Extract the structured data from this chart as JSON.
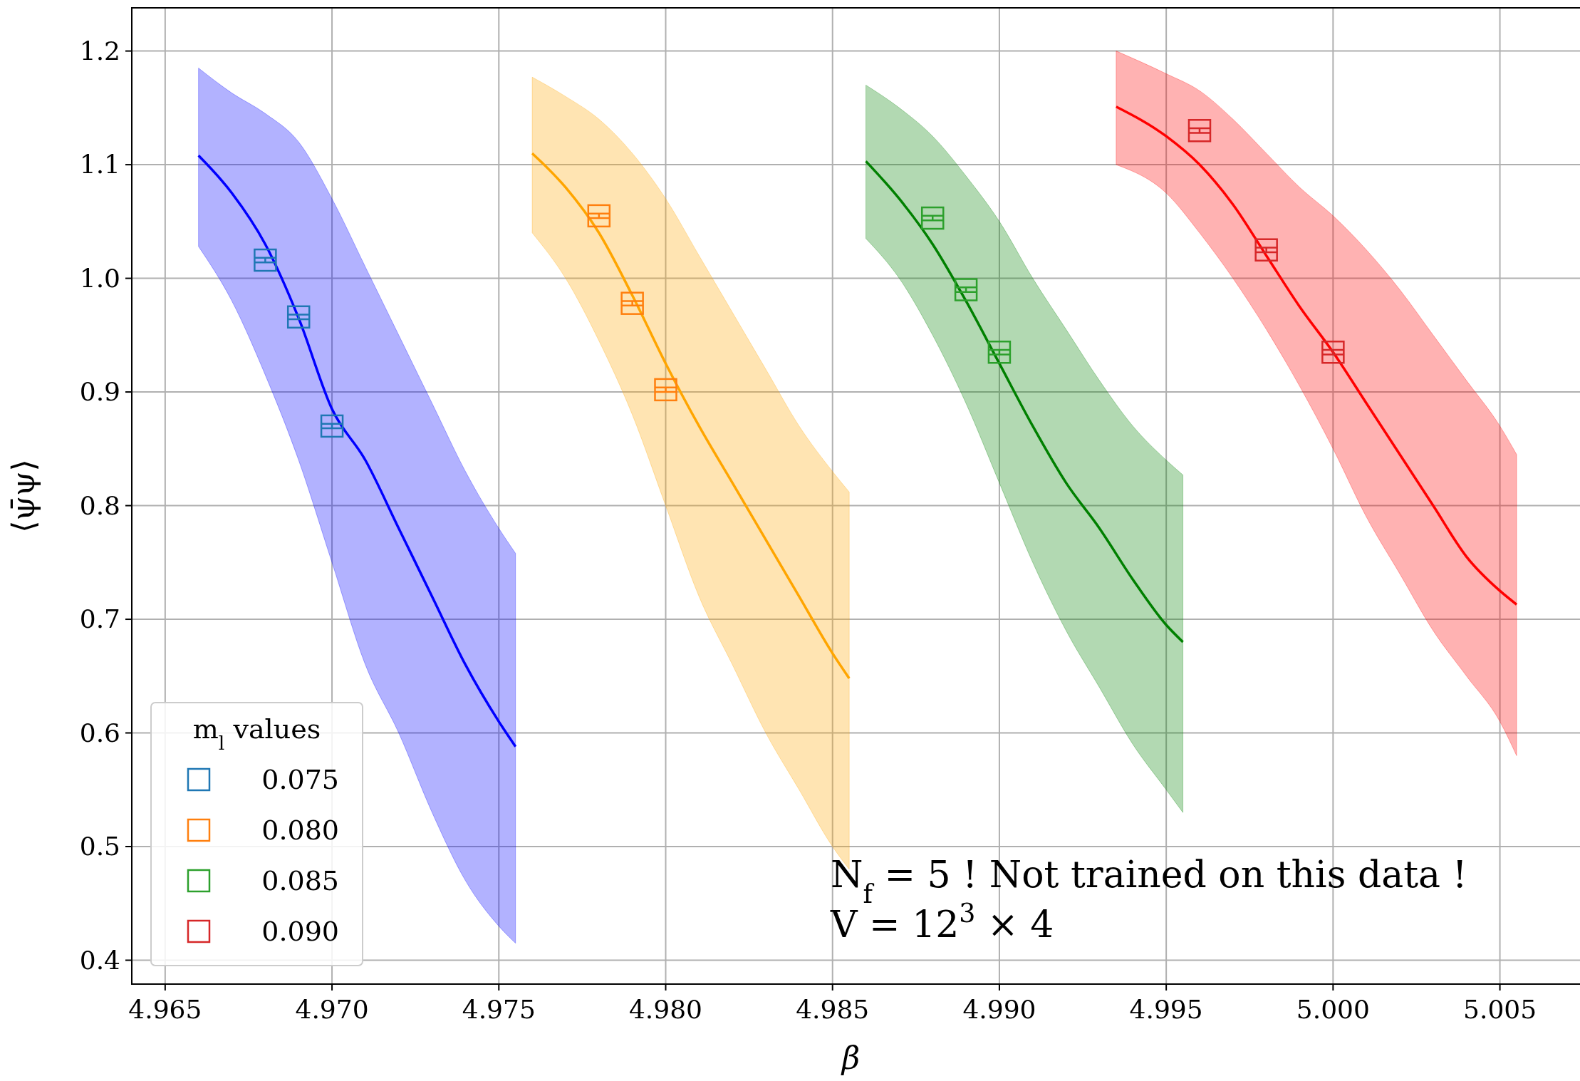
{
  "chart_data": {
    "type": "scatter",
    "xlabel": "β",
    "ylabel": "⟨ψ̄ψ⟩",
    "legend_title": "m$_{l}$ values",
    "legend": "bottom left",
    "grid": true,
    "marker": "square",
    "xlim": [
      4.964,
      5.0074
    ],
    "ylim": [
      0.379,
      1.238
    ],
    "xticks": [
      {
        "value": 4.965,
        "label": "4.965"
      },
      {
        "value": 4.97,
        "label": "4.970"
      },
      {
        "value": 4.975,
        "label": "4.975"
      },
      {
        "value": 4.98,
        "label": "4.980"
      },
      {
        "value": 4.985,
        "label": "4.985"
      },
      {
        "value": 4.99,
        "label": "4.990"
      },
      {
        "value": 4.995,
        "label": "4.995"
      },
      {
        "value": 5.0,
        "label": "5.000"
      },
      {
        "value": 5.005,
        "label": "5.005"
      }
    ],
    "yticks": [
      0.4,
      0.5,
      0.6,
      0.7,
      0.8,
      0.9,
      {
        "value": 1.0,
        "label": "1.0"
      },
      1.1,
      1.2
    ],
    "series": [
      {
        "type": "line",
        "marker": "none",
        "color": "#0000ff",
        "x": [
          4.966,
          4.967,
          4.968,
          4.969,
          4.97,
          4.971,
          4.972,
          4.973,
          4.974,
          4.975,
          4.9755
        ],
        "values": [
          1.108,
          1.075,
          1.03,
          0.965,
          0.885,
          0.84,
          0.78,
          0.72,
          0.66,
          0.61,
          0.588
        ],
        "upper": [
          1.185,
          1.163,
          1.145,
          1.12,
          1.07,
          1.01,
          0.95,
          0.89,
          0.83,
          0.78,
          0.758
        ],
        "lower": [
          1.028,
          0.98,
          0.915,
          0.84,
          0.75,
          0.66,
          0.6,
          0.53,
          0.47,
          0.43,
          0.415
        ]
      },
      {
        "type": "line",
        "marker": "none",
        "color": "#ffa500",
        "x": [
          4.976,
          4.977,
          4.978,
          4.979,
          4.98,
          4.981,
          4.982,
          4.983,
          4.984,
          4.985,
          4.9855
        ],
        "values": [
          1.11,
          1.08,
          1.04,
          0.985,
          0.925,
          0.87,
          0.82,
          0.77,
          0.72,
          0.67,
          0.648
        ],
        "upper": [
          1.177,
          1.16,
          1.14,
          1.11,
          1.07,
          1.02,
          0.97,
          0.92,
          0.87,
          0.83,
          0.812
        ],
        "lower": [
          1.04,
          1.0,
          0.945,
          0.88,
          0.8,
          0.72,
          0.66,
          0.6,
          0.55,
          0.5,
          0.48
        ]
      },
      {
        "type": "line",
        "marker": "none",
        "color": "#008000",
        "x": [
          4.986,
          4.987,
          4.988,
          4.989,
          4.99,
          4.991,
          4.992,
          4.993,
          4.994,
          4.995,
          4.9955
        ],
        "values": [
          1.103,
          1.07,
          1.03,
          0.98,
          0.925,
          0.87,
          0.82,
          0.78,
          0.735,
          0.695,
          0.68
        ],
        "upper": [
          1.17,
          1.15,
          1.125,
          1.09,
          1.05,
          1.0,
          0.955,
          0.91,
          0.87,
          0.84,
          0.827
        ],
        "lower": [
          1.035,
          1.0,
          0.95,
          0.89,
          0.82,
          0.75,
          0.69,
          0.64,
          0.59,
          0.55,
          0.53
        ]
      },
      {
        "type": "line",
        "marker": "none",
        "color": "#ff0000",
        "x": [
          4.9935,
          4.995,
          4.996,
          4.997,
          4.998,
          4.999,
          5.0,
          5.001,
          5.002,
          5.003,
          5.004,
          5.005,
          5.0055
        ],
        "values": [
          1.151,
          1.125,
          1.1,
          1.065,
          1.02,
          0.975,
          0.935,
          0.89,
          0.845,
          0.8,
          0.755,
          0.725,
          0.713
        ],
        "upper": [
          1.2,
          1.18,
          1.165,
          1.14,
          1.11,
          1.08,
          1.055,
          1.025,
          0.99,
          0.95,
          0.91,
          0.87,
          0.845
        ],
        "lower": [
          1.1,
          1.075,
          1.04,
          1.0,
          0.955,
          0.905,
          0.85,
          0.79,
          0.74,
          0.69,
          0.65,
          0.61,
          0.58
        ]
      },
      {
        "name": "0.075",
        "color": "#1f77b4",
        "x": [
          4.968,
          4.969,
          4.97
        ],
        "values": [
          1.016,
          0.966,
          0.87
        ],
        "errors": [
          0.002,
          0.002,
          0.002
        ]
      },
      {
        "name": "0.080",
        "color": "#ff7f0e",
        "x": [
          4.978,
          4.979,
          4.98
        ],
        "values": [
          1.055,
          0.978,
          0.902
        ],
        "errors": [
          0.002,
          0.002,
          0.002
        ]
      },
      {
        "name": "0.085",
        "color": "#2ca02c",
        "x": [
          4.988,
          4.989,
          4.99
        ],
        "values": [
          1.053,
          0.99,
          0.935
        ],
        "errors": [
          0.002,
          0.002,
          0.002
        ]
      },
      {
        "name": "0.090",
        "color": "#d62728",
        "x": [
          4.996,
          4.998,
          5.0
        ],
        "values": [
          1.13,
          1.025,
          0.935
        ],
        "errors": [
          0.002,
          0.002,
          0.002
        ]
      }
    ],
    "annotations": [
      "N$_{f}$ = 5 ! Not trained on this data !",
      "V = 12$^{3}$ × 4"
    ]
  }
}
